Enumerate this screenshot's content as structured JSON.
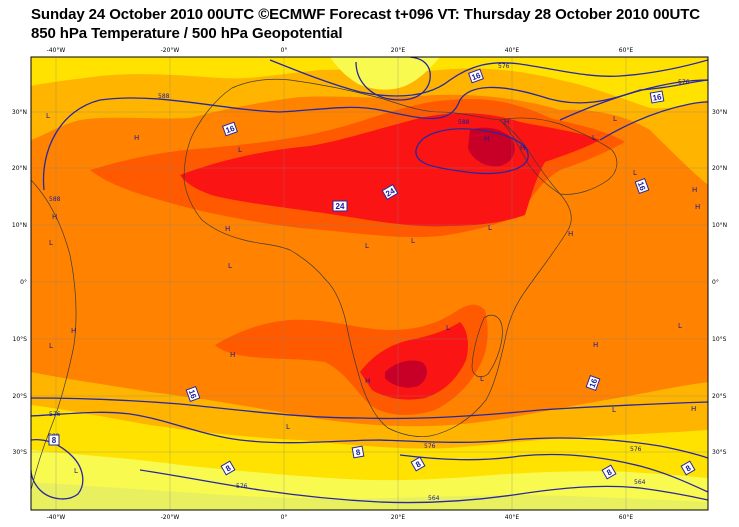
{
  "header": {
    "line1": "Sunday 24 October 2010 00UTC ©ECMWF Forecast t+096 VT: Thursday 28 October 2010 00UTC",
    "line2": "850 hPa Temperature / 500 hPa Geopotential"
  },
  "map": {
    "top_lon_labels": [
      "-40°W",
      "-20°W",
      "0°",
      "20°E",
      "40°E",
      "60°E"
    ],
    "bottom_lon_labels": [
      "-40°W",
      "-20°W",
      "0°",
      "20°E",
      "40°E",
      "60°E"
    ],
    "lat_labels": [
      "30°N",
      "20°N",
      "10°N",
      "0°",
      "10°S",
      "20°S",
      "30°S"
    ],
    "colors": {
      "frame": "#000000",
      "grid": "#808080",
      "contour": "#2828a0",
      "coast": "#3a3a3a",
      "t_lt4": "#e8f060",
      "t_4_8": "#f8fa50",
      "t_8_12": "#ffe200",
      "t_12_16": "#ffb400",
      "t_16_20": "#ff8200",
      "t_20_24": "#ff5a00",
      "t_24_28": "#fa1414",
      "t_gt28": "#c80028"
    },
    "pressure_centres": [
      "L",
      "H",
      "L",
      "H",
      "L",
      "H",
      "L",
      "H",
      "L",
      "L",
      "L",
      "L",
      "H",
      "H",
      "L",
      "H",
      "H",
      "L",
      "H",
      "H",
      "L",
      "H",
      "H",
      "L",
      "L",
      "H",
      "H",
      "L",
      "L",
      "L",
      "L"
    ],
    "geopotential_labels": [
      "576",
      "588",
      "588",
      "576",
      "588",
      "576",
      "576",
      "576",
      "564",
      "564",
      "576",
      "588"
    ],
    "temperature_labels": [
      "16",
      "16",
      "24",
      "24",
      "16",
      "16",
      "16",
      "8",
      "8",
      "8",
      "8",
      "8",
      "8",
      "16"
    ]
  }
}
